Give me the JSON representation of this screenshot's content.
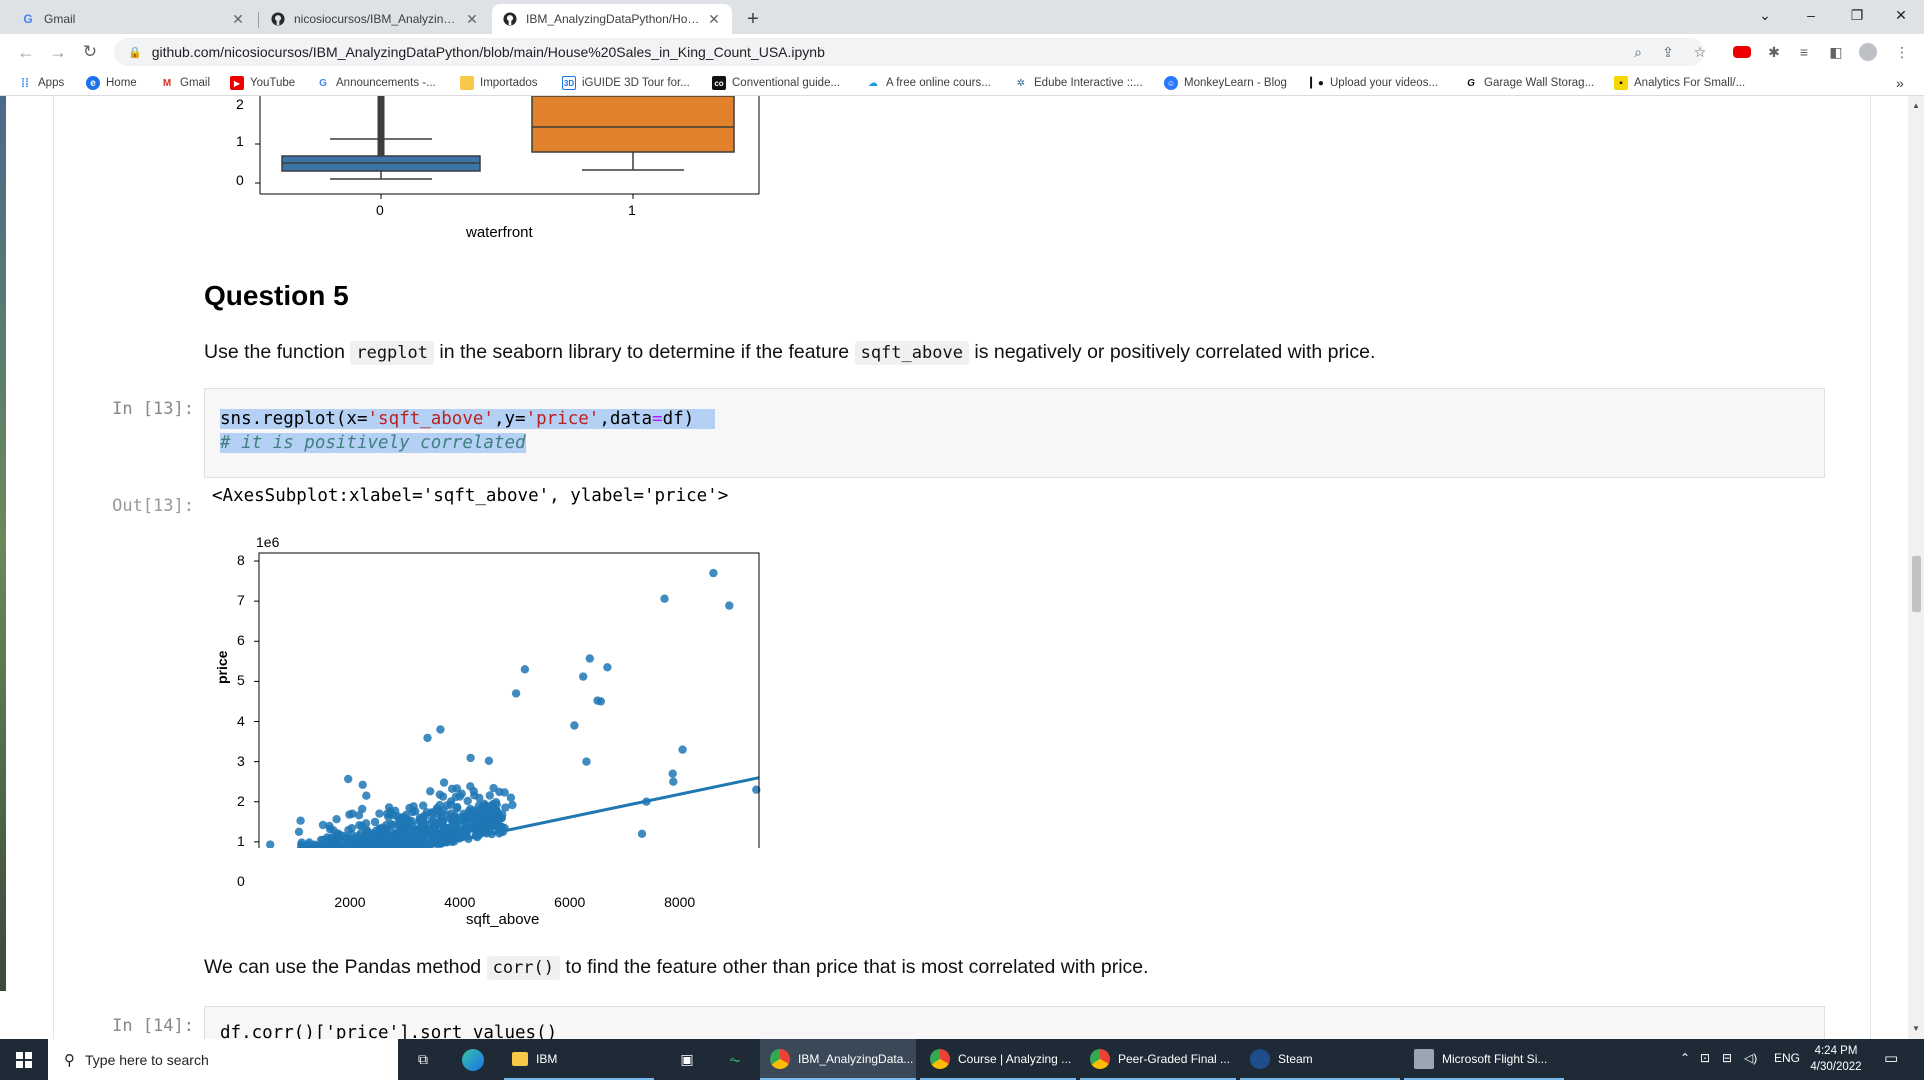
{
  "browser": {
    "tabs": [
      {
        "title": "Gmail",
        "icon": "google-g"
      },
      {
        "title": "nicosiocursos/IBM_AnalyzingDat",
        "icon": "github"
      },
      {
        "title": "IBM_AnalyzingDataPython/Hous",
        "icon": "github"
      }
    ],
    "new_tab": "+",
    "url": "github.com/nicosiocursos/IBM_AnalyzingDataPython/blob/main/House%20Sales_in_King_Count_USA.ipynb",
    "bookmarks": [
      {
        "label": "Apps",
        "icon": "apps-grid"
      },
      {
        "label": "Home",
        "icon": "home-circle"
      },
      {
        "label": "Gmail",
        "icon": "gmail-m"
      },
      {
        "label": "YouTube",
        "icon": "youtube"
      },
      {
        "label": "Announcements -...",
        "icon": "google-g"
      },
      {
        "label": "Importados",
        "icon": "folder"
      },
      {
        "label": "iGUIDE 3D Tour for...",
        "icon": "iguide"
      },
      {
        "label": "Conventional guide...",
        "icon": "coursera"
      },
      {
        "label": "A free online cours...",
        "icon": "cloud"
      },
      {
        "label": "Edube Interactive ::...",
        "icon": "edube"
      },
      {
        "label": "MonkeyLearn - Blog",
        "icon": "monkeylearn"
      },
      {
        "label": "Upload your videos...",
        "icon": "patreon"
      },
      {
        "label": "Garage Wall Storag...",
        "icon": "g-italic"
      },
      {
        "label": "Analytics For Small/...",
        "icon": "analytics"
      }
    ],
    "bookmarks_overflow": "»"
  },
  "notebook": {
    "boxplot": {
      "y_ticks": [
        "2",
        "1",
        "0"
      ],
      "x_ticks": [
        "0",
        "1"
      ],
      "xlabel": "waterfront",
      "colors": [
        "#3a75a8",
        "#e1812c"
      ]
    },
    "question_title": "Question 5",
    "question_text": {
      "part1": "Use the function",
      "code1": "regplot",
      "part2": "in the seaborn library to determine if the feature",
      "code2": "sqft_above",
      "part3": "is negatively or positively correlated with price."
    },
    "cell13": {
      "in_prompt": "In [13]:",
      "out_prompt": "Out[13]:",
      "code_line1": {
        "a": "sns.regplot(x=",
        "b": "'sqft_above'",
        "c": ",y=",
        "d": "'price'",
        "e": ",data",
        "f": "=",
        "g": "df)"
      },
      "code_line2": "# it is positively correlated",
      "output_text": "<AxesSubplot:xlabel='sqft_above', ylabel='price'>"
    },
    "corr_text": {
      "part1": "We can use the Pandas method",
      "code": "corr()",
      "part2": "to find the feature other than price that is most correlated with price."
    },
    "cell14": {
      "in_prompt": "In [14]:",
      "code_line1": "df.corr()['price'].sort_values()"
    }
  },
  "chart_data": {
    "type": "scatter",
    "xlabel": "sqft_above",
    "ylabel": "price",
    "scale_label": "1e6",
    "x_ticks": [
      "2000",
      "4000",
      "6000",
      "8000"
    ],
    "y_ticks": [
      "0",
      "1",
      "2",
      "3",
      "4",
      "5",
      "6",
      "7",
      "8"
    ],
    "xlim": [
      300,
      9400
    ],
    "ylim": [
      -0.1,
      8.2
    ],
    "point_color": "#1f77b4",
    "regression_line": {
      "x": [
        300,
        9400
      ],
      "y": [
        0.0,
        2.6
      ]
    },
    "outliers": [
      {
        "x": 8570,
        "y": 7.7
      },
      {
        "x": 7680,
        "y": 7.06
      },
      {
        "x": 8860,
        "y": 6.89
      },
      {
        "x": 6640,
        "y": 5.35
      },
      {
        "x": 6320,
        "y": 5.57
      },
      {
        "x": 6200,
        "y": 5.12
      },
      {
        "x": 5140,
        "y": 5.3
      },
      {
        "x": 6520,
        "y": 4.5
      },
      {
        "x": 6460,
        "y": 4.52
      },
      {
        "x": 4980,
        "y": 4.7
      },
      {
        "x": 8010,
        "y": 3.3
      },
      {
        "x": 7830,
        "y": 2.7
      },
      {
        "x": 7840,
        "y": 2.5
      },
      {
        "x": 7350,
        "y": 2.0
      },
      {
        "x": 7270,
        "y": 1.2
      },
      {
        "x": 9350,
        "y": 2.3
      },
      {
        "x": 6040,
        "y": 3.9
      },
      {
        "x": 6260,
        "y": 3.0
      }
    ]
  },
  "taskbar": {
    "search_placeholder": "Type here to search",
    "items": [
      {
        "label": "IBM",
        "icon": "folder"
      },
      {
        "label": "IBM_AnalyzingData...",
        "icon": "chrome"
      },
      {
        "label": "Course | Analyzing ...",
        "icon": "chrome"
      },
      {
        "label": "Peer-Graded Final ...",
        "icon": "chrome"
      },
      {
        "label": "Steam",
        "icon": "steam"
      },
      {
        "label": "Microsoft Flight Si...",
        "icon": "flight-sim"
      }
    ],
    "lang": "ENG",
    "time": "4:24 PM",
    "date": "4/30/2022"
  }
}
